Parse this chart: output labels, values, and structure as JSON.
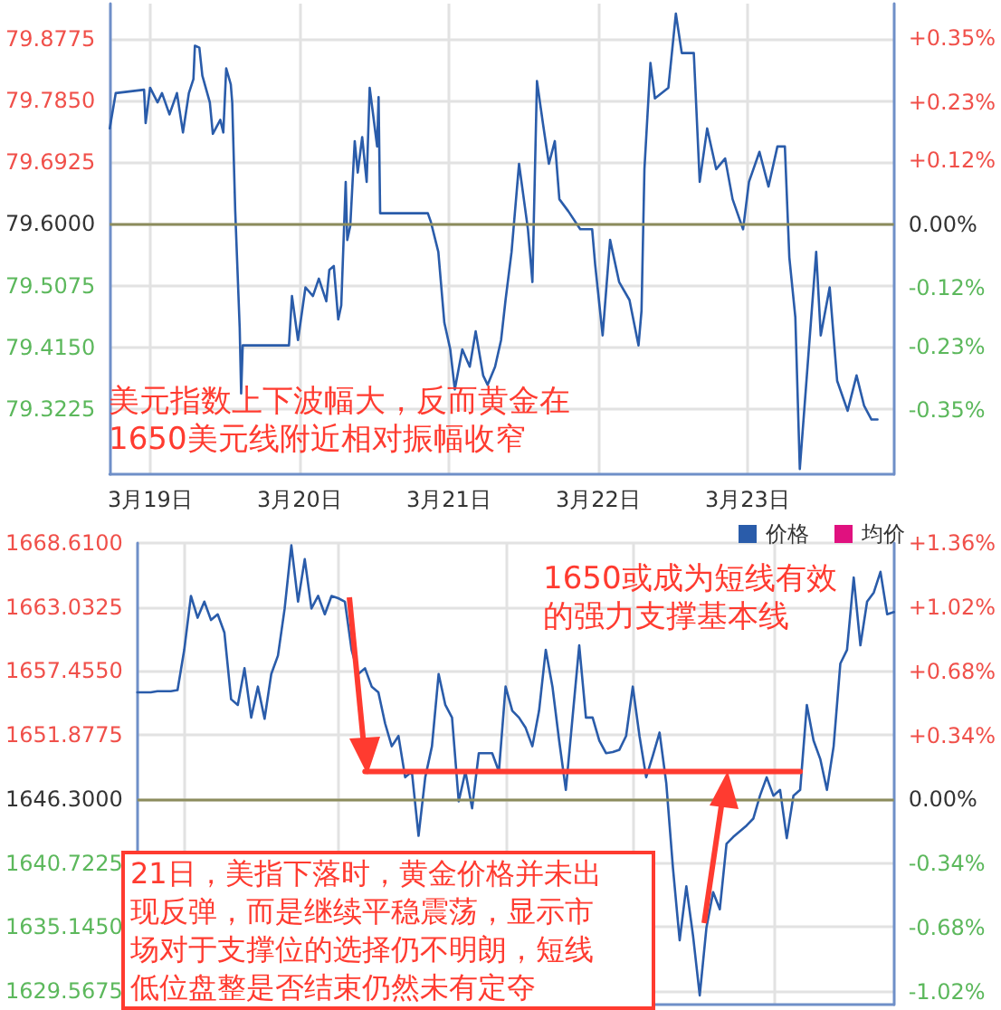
{
  "chart_data": [
    {
      "type": "line",
      "annotations": [
        "美元指数上下波幅大，反而黄金在1650美元线附近相对振幅收窄"
      ],
      "xlim": [
        "--03-18T17:31",
        "--03-23T23:31"
      ],
      "xticks": [
        {
          "value": "--03-19",
          "label": "3月19日"
        },
        {
          "value": "--03-20",
          "label": "3月20日"
        },
        {
          "value": "--03-21",
          "label": "3月21日"
        },
        {
          "value": "--03-22",
          "label": "3月22日"
        },
        {
          "value": "--03-23",
          "label": "3月23日"
        }
      ],
      "ylim": [
        79.225,
        79.93
      ],
      "yticks": [
        {
          "value": 79.3225,
          "label": "79.3225"
        },
        {
          "value": 79.415,
          "label": "79.4150"
        },
        {
          "value": 79.5075,
          "label": "79.5075"
        },
        {
          "value": 79.6,
          "label": "79.6000"
        },
        {
          "value": 79.6925,
          "label": "79.6925"
        },
        {
          "value": 79.785,
          "label": "79.7850"
        },
        {
          "value": 79.8775,
          "label": "79.8775"
        }
      ],
      "y2lim": [
        -0.471,
        0.415
      ],
      "y2ticks": [
        {
          "value": -0.35,
          "label": "-0.35%"
        },
        {
          "value": -0.23,
          "label": "-0.23%"
        },
        {
          "value": -0.12,
          "label": "-0.12%"
        },
        {
          "value": 0,
          "label": "0.00%"
        },
        {
          "value": 0.12,
          "label": "+0.12%"
        },
        {
          "value": 0.23,
          "label": "+0.23%"
        },
        {
          "value": 0.35,
          "label": "+0.35%"
        }
      ],
      "grid": true,
      "ref_lines": [
        {
          "axis": "y",
          "value": 79.6,
          "color": "#8c8c5c"
        }
      ],
      "series": [
        {
          "color": "#2a5caa",
          "x": [
            "--03-18T17:31",
            "--03-18T18:29",
            "--03-18T23:02",
            "--03-18T23:17",
            "--03-19T00:00",
            "--03-19T01:12",
            "--03-19T01:55",
            "--03-19T03:07",
            "--03-19T04:19",
            "--03-19T05:17",
            "--03-19T06:14",
            "--03-19T06:58",
            "--03-19T07:12",
            "--03-19T07:55",
            "--03-19T08:24",
            "--03-19T09:36",
            "--03-19T10:05",
            "--03-19T11:17",
            "--03-19T11:46",
            "--03-19T12:14",
            "--03-19T12:58",
            "--03-19T13:12",
            "--03-19T13:41",
            "--03-19T14:24",
            "--03-19T14:38",
            "--03-19T14:53",
            "--03-19T22:19",
            "--03-19T22:48",
            "--03-19T23:46",
            "--03-20T00:58",
            "--03-20T02:10",
            "--03-20T03:07",
            "--03-20T04:19",
            "--03-20T04:48",
            "--03-20T05:31",
            "--03-20T06:14",
            "--03-20T06:43",
            "--03-20T07:26",
            "--03-20T07:41",
            "--03-20T08:10",
            "--03-20T08:53",
            "--03-20T09:22",
            "--03-20T10:05",
            "--03-20T10:48",
            "--03-20T11:17",
            "--03-20T11:46",
            "--03-20T12:29",
            "--03-20T12:43",
            "--03-20T12:58",
            "--03-20T20:38",
            "--03-20T21:07",
            "--03-20T22:19",
            "--03-20T23:17",
            "--03-21T00:14",
            "--03-21T00:58",
            "--03-21T02:10",
            "--03-21T03:22",
            "--03-21T04:19",
            "--03-21T05:31",
            "--03-21T06:14",
            "--03-21T07:26",
            "--03-21T08:24",
            "--03-21T09:07",
            "--03-21T10:05",
            "--03-21T11:17",
            "--03-21T12:43",
            "--03-21T13:26",
            "--03-21T14:10",
            "--03-21T15:07",
            "--03-21T16:05",
            "--03-21T17:02",
            "--03-21T17:46",
            "--03-21T19:12",
            "--03-21T21:07",
            "--03-21T23:02",
            "--03-21T23:31",
            "--03-22T00:43",
            "--03-22T01:55",
            "--03-22T03:22",
            "--03-22T05:02",
            "--03-22T06:29",
            "--03-22T06:58",
            "--03-22T07:26",
            "--03-22T08:24",
            "--03-22T09:07",
            "--03-22T11:17",
            "--03-22T12:29",
            "--03-22T13:26",
            "--03-22T15:22",
            "--03-22T16:19",
            "--03-22T17:31",
            "--03-22T18:58",
            "--03-22T20:24",
            "--03-22T21:36",
            "--03-22T23:17",
            "--03-23T00:14",
            "--03-23T01:55",
            "--03-23T03:22",
            "--03-23T04:48",
            "--03-23T06:00",
            "--03-23T06:43",
            "--03-23T07:41",
            "--03-23T08:24",
            "--03-23T09:36",
            "--03-23T11:02",
            "--03-23T11:46",
            "--03-23T13:12",
            "--03-23T14:24",
            "--03-23T16:05",
            "--03-23T17:31",
            "--03-23T18:43",
            "--03-23T19:55",
            "--03-23T20:53"
          ],
          "values": [
            79.743,
            79.796,
            79.801,
            79.751,
            79.804,
            79.782,
            79.796,
            79.764,
            79.796,
            79.737,
            79.796,
            79.817,
            79.867,
            79.864,
            79.822,
            79.782,
            79.735,
            79.756,
            79.737,
            79.833,
            79.809,
            79.782,
            79.619,
            79.444,
            79.346,
            79.418,
            79.418,
            79.492,
            79.426,
            79.505,
            79.492,
            79.518,
            79.484,
            79.531,
            79.537,
            79.457,
            79.478,
            79.663,
            79.576,
            79.597,
            79.724,
            79.677,
            79.73,
            79.663,
            79.804,
            79.769,
            79.716,
            79.79,
            79.616,
            79.616,
            79.603,
            79.558,
            79.452,
            79.412,
            79.352,
            79.412,
            79.386,
            79.439,
            79.373,
            79.359,
            79.386,
            79.426,
            79.486,
            79.558,
            79.69,
            79.592,
            79.513,
            79.814,
            79.751,
            79.69,
            79.724,
            79.637,
            79.619,
            79.592,
            79.592,
            79.539,
            79.433,
            79.576,
            79.513,
            79.486,
            79.418,
            79.47,
            79.682,
            79.841,
            79.788,
            79.804,
            79.915,
            79.856,
            79.856,
            79.663,
            79.743,
            79.682,
            79.698,
            79.637,
            79.592,
            79.663,
            79.708,
            79.656,
            79.716,
            79.716,
            79.55,
            79.46,
            79.233,
            79.381,
            79.558,
            79.433,
            79.505,
            79.365,
            79.32,
            79.373,
            79.328,
            79.307,
            79.307
          ]
        }
      ]
    },
    {
      "type": "line",
      "annotations": [
        "1650或成为短线有效的强力支撑基本线",
        "21日，美指下落时，黄金价格并未出现反弹，而是继续平稳震荡，显示市场对于支撑位的选择仍不明朗，短线低位盘整是否结束仍然未有定夺"
      ],
      "categories": [
        null,
        null,
        null,
        null,
        null,
        null,
        null,
        null,
        null,
        null,
        null,
        null,
        null,
        null,
        null,
        null,
        null,
        null,
        null,
        null,
        null,
        null,
        null,
        null,
        null,
        null,
        null,
        null,
        null,
        null,
        null,
        null,
        null,
        null,
        null,
        null,
        null,
        null,
        null,
        null,
        null,
        null,
        null,
        null,
        null,
        null,
        null,
        null,
        null,
        null,
        null,
        null,
        null,
        null,
        null,
        null,
        null,
        null,
        null,
        null,
        null,
        null,
        null,
        null,
        null,
        null,
        null,
        null,
        null,
        null,
        null,
        null,
        null,
        null,
        null,
        null,
        null,
        null,
        null,
        null,
        null,
        null,
        null,
        null,
        null,
        null,
        null,
        null,
        null,
        null,
        null,
        null,
        null,
        null,
        null,
        null,
        null,
        null,
        null,
        null,
        null,
        null,
        null,
        null,
        null,
        null,
        null,
        null,
        null,
        null,
        null,
        null,
        null,
        null
      ],
      "tick_labels": "y",
      "ylim": [
        1628.4,
        1668.61
      ],
      "yticks": [
        {
          "value": 1629.5675,
          "label": "1629.5675"
        },
        {
          "value": 1635.145,
          "label": "1635.1450"
        },
        {
          "value": 1640.7225,
          "label": "1640.7225"
        },
        {
          "value": 1646.3,
          "label": "1646.3000"
        },
        {
          "value": 1651.8775,
          "label": "1651.8775"
        },
        {
          "value": 1657.455,
          "label": "1657.4550"
        },
        {
          "value": 1663.0325,
          "label": "1663.0325"
        },
        {
          "value": 1668.61,
          "label": "1668.6100"
        }
      ],
      "y2lim": [
        -1.0873,
        1.36
      ],
      "y2ticks": [
        {
          "value": -1.02,
          "label": "-1.02%"
        },
        {
          "value": -0.68,
          "label": "-0.68%"
        },
        {
          "value": -0.34,
          "label": "-0.34%"
        },
        {
          "value": 0,
          "label": "0.00%"
        },
        {
          "value": 0.34,
          "label": "+0.34%"
        },
        {
          "value": 0.68,
          "label": "+0.68%"
        },
        {
          "value": 1.02,
          "label": "+1.02%"
        },
        {
          "value": 1.36,
          "label": "+1.36%"
        }
      ],
      "grid": true,
      "legend": "top right",
      "ref_lines": [
        {
          "axis": "y",
          "value": 1646.3,
          "color": "#8c8c5c"
        }
      ],
      "series": [
        {
          "name": "价格",
          "color": "#2a5caa",
          "values": [
            1655.6,
            1655.6,
            1655.6,
            1655.7,
            1655.7,
            1655.7,
            1655.8,
            1659.3,
            1664.0,
            1662.1,
            1663.5,
            1661.9,
            1662.4,
            1660.8,
            1655.0,
            1654.5,
            1657.7,
            1653.4,
            1656.1,
            1653.3,
            1657.2,
            1658.8,
            1662.9,
            1668.4,
            1663.5,
            1667.2,
            1662.9,
            1664.0,
            1662.4,
            1664.0,
            1663.8,
            1663.5,
            1659.3,
            1657.2,
            1657.7,
            1656.1,
            1655.6,
            1652.9,
            1650.9,
            1651.8,
            1648.2,
            1648.7,
            1643.1,
            1648.2,
            1650.9,
            1657.2,
            1654.5,
            1653.4,
            1646.1,
            1648.7,
            1645.5,
            1650.3,
            1650.3,
            1650.3,
            1648.7,
            1656.1,
            1654.0,
            1653.4,
            1652.5,
            1650.9,
            1654.0,
            1659.3,
            1656.1,
            1651.4,
            1647.1,
            1653.4,
            1659.7,
            1653.4,
            1653.4,
            1651.4,
            1650.3,
            1650.4,
            1650.6,
            1651.8,
            1656.1,
            1651.8,
            1648.2,
            1650.1,
            1652.1,
            1647.7,
            1640.3,
            1634.0,
            1638.7,
            1634.4,
            1629.2,
            1635.1,
            1638.2,
            1636.7,
            1642.4,
            1643.0,
            1643.5,
            1644.0,
            1644.6,
            1646.6,
            1648.2,
            1646.6,
            1647.1,
            1642.9,
            1646.6,
            1647.1,
            1654.5,
            1651.4,
            1649.8,
            1647.1,
            1650.9,
            1658.1,
            1659.3,
            1665.6,
            1659.7,
            1663.5,
            1664.3,
            1666.1,
            1662.4,
            1662.6
          ]
        },
        {
          "name": "均价",
          "color": "#e0117f",
          "values": [
            null,
            null,
            null,
            null,
            null,
            null,
            null,
            null,
            null,
            null,
            null,
            null,
            null,
            null,
            null,
            null,
            null,
            null,
            null,
            null,
            null,
            null,
            null,
            null,
            null,
            null,
            null,
            null,
            null,
            null,
            null,
            null,
            null,
            null,
            null,
            null,
            null,
            null,
            null,
            null,
            null,
            null,
            null,
            null,
            null,
            null,
            null,
            null,
            null,
            null,
            null,
            null,
            null,
            null,
            null,
            null,
            null,
            null,
            null,
            null,
            null,
            null,
            null,
            null,
            null,
            null,
            null,
            null,
            null,
            null,
            null,
            null,
            null,
            null,
            null,
            null,
            null,
            null,
            null,
            null,
            null,
            null,
            null,
            null,
            null,
            null,
            null,
            null,
            null,
            null,
            null,
            null,
            null,
            null,
            null,
            null,
            null,
            null,
            null,
            null,
            null,
            null,
            null,
            null,
            null,
            null,
            null,
            null,
            null,
            null,
            null,
            null,
            null,
            null
          ]
        },
        {
          "color": "#ff3b30",
          "values": [
            null,
            null,
            null,
            null,
            null,
            null,
            null,
            null,
            null,
            null,
            null,
            null,
            null,
            null,
            null,
            null,
            null,
            null,
            null,
            null,
            null,
            null,
            null,
            null,
            null,
            null,
            null,
            null,
            null,
            null,
            null,
            null,
            null,
            null,
            1648.7,
            1648.7,
            1648.7,
            1648.7,
            1648.7,
            1648.7,
            1648.7,
            1648.7,
            1648.7,
            1648.7,
            1648.7,
            1648.7,
            1648.7,
            1648.7,
            1648.7,
            1648.7,
            1648.7,
            1648.7,
            1648.7,
            1648.7,
            1648.7,
            1648.7,
            1648.7,
            1648.7,
            1648.7,
            1648.7,
            1648.7,
            1648.7,
            1648.7,
            1648.7,
            1648.7,
            1648.7,
            1648.7,
            1648.7,
            1648.7,
            1648.7,
            1648.7,
            1648.7,
            1648.7,
            1648.7,
            1648.7,
            1648.7,
            1648.7,
            1648.7,
            1648.7,
            1648.7,
            1648.7,
            1648.7,
            1648.7,
            1648.7,
            1648.7,
            1648.7,
            1648.7,
            1648.7,
            1648.7,
            1648.7,
            1648.7,
            1648.7,
            1648.7,
            1648.7,
            1648.7,
            1648.7,
            1648.7,
            1648.7,
            1648.7,
            1648.7,
            null,
            null,
            null,
            null,
            null,
            null,
            null,
            null,
            null,
            null,
            null,
            null,
            null,
            null
          ]
        }
      ]
    }
  ]
}
